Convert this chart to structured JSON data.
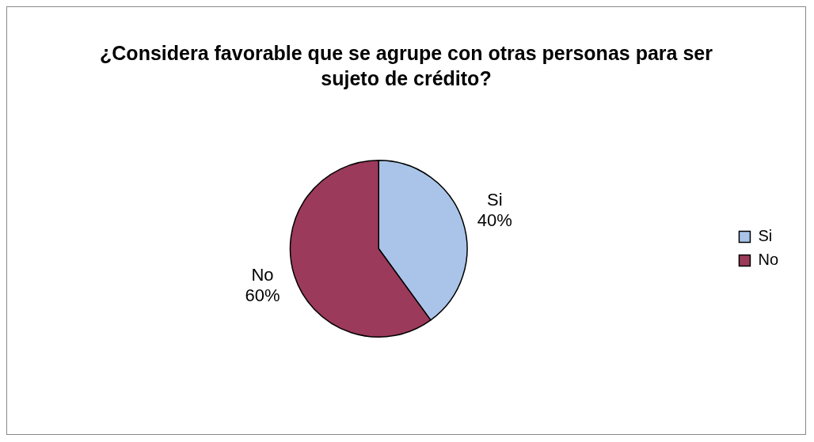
{
  "chart_data": {
    "type": "pie",
    "title": "¿Considera favorable que se agrupe con otras personas para ser sujeto de crédito?",
    "categories": [
      "Si",
      "No"
    ],
    "values": [
      40,
      60
    ],
    "colors": [
      "#a9c4e8",
      "#9b3a5a"
    ],
    "value_labels": [
      "40%",
      "60%"
    ],
    "legend": "right"
  }
}
